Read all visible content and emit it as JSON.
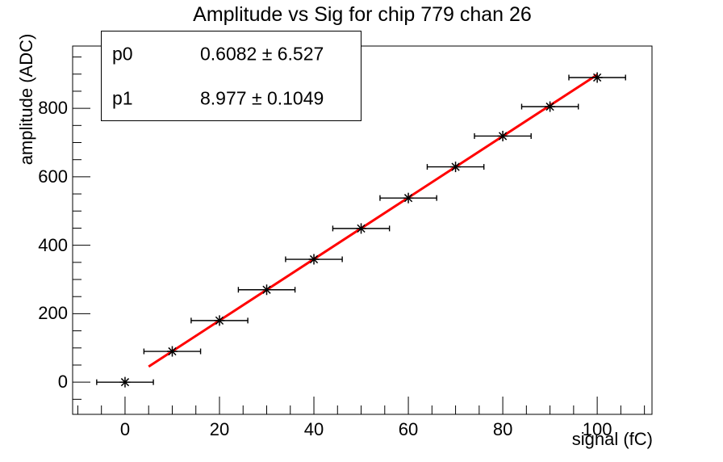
{
  "title": "Amplitude vs Sig for chip 779 chan 26",
  "stats": {
    "rows": [
      {
        "name": "p0",
        "value": "0.6082 ± 6.527"
      },
      {
        "name": "p1",
        "value": "8.977 ± 0.1049"
      }
    ]
  },
  "chart_data": {
    "type": "scatter",
    "title": "Amplitude vs Sig for chip 779 chan 26",
    "xlabel": "signal (fC)",
    "ylabel": "amplitude (ADC)",
    "x": [
      0,
      10,
      20,
      30,
      40,
      50,
      60,
      70,
      80,
      90,
      100
    ],
    "y": [
      0,
      90,
      180,
      270,
      359,
      449,
      538,
      629,
      719,
      805,
      890
    ],
    "x_err": 1.5,
    "marker": "asterisk",
    "fit": {
      "type": "linear",
      "p0": 0.6082,
      "p0_err": 6.527,
      "p1": 8.977,
      "p1_err": 0.1049,
      "range": [
        5,
        100
      ]
    },
    "xlim": [
      -11.1,
      111.6
    ],
    "ylim": [
      -94,
      982
    ],
    "x_ticks": [
      0,
      20,
      40,
      60,
      80,
      100
    ],
    "y_ticks": [
      0,
      200,
      400,
      600,
      800
    ],
    "x_minor_step": 5,
    "y_minor_step": 50,
    "grid": false,
    "legend": false,
    "colors": {
      "background": "#ffffff",
      "frame": "#000000",
      "marker": "#000000",
      "fit_line": "#ff0000",
      "text": "#000000"
    }
  }
}
